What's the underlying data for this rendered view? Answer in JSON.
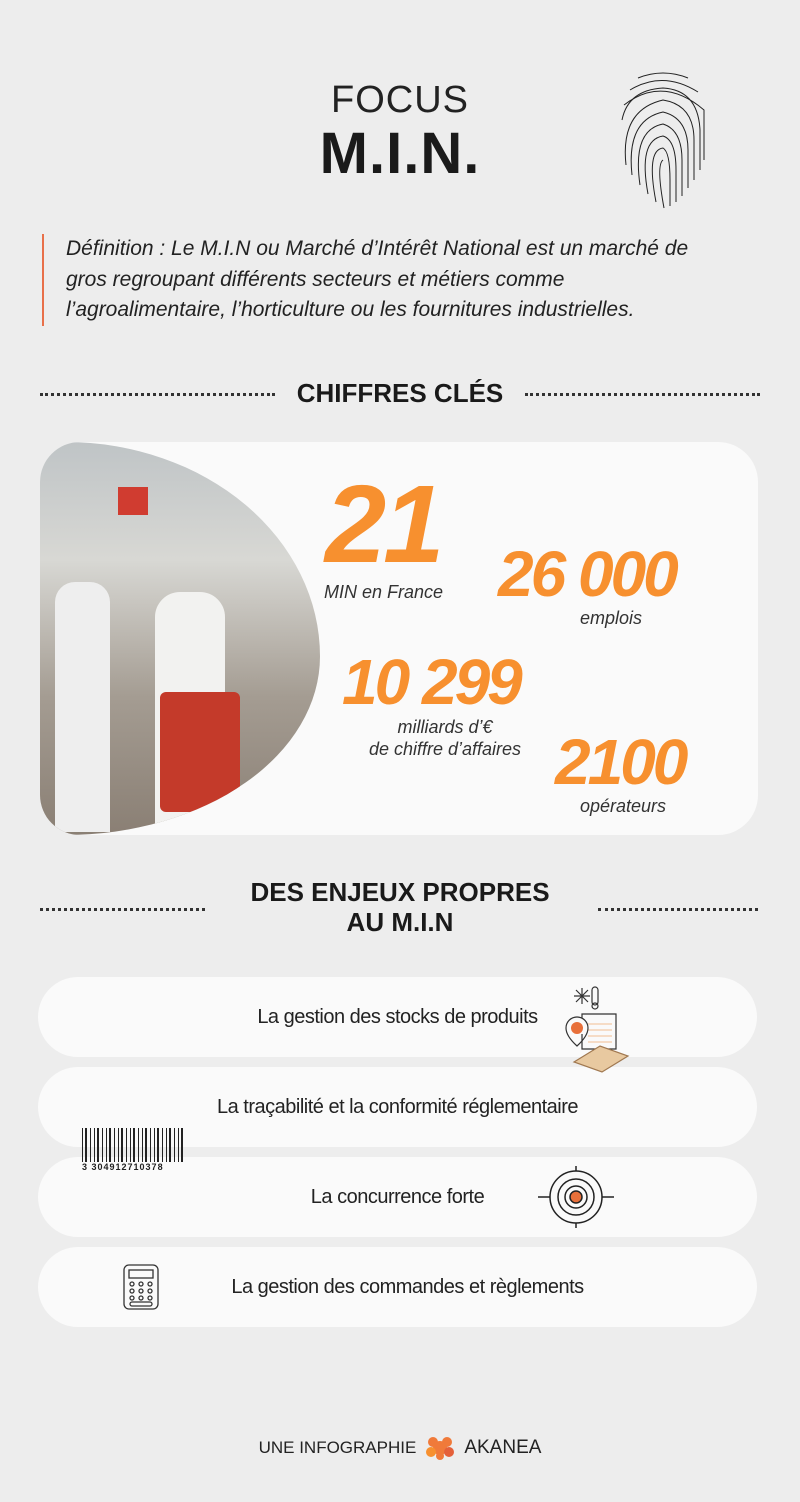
{
  "header": {
    "focus": "FOCUS",
    "title": "M.I.N."
  },
  "definition": "Définition : Le M.I.N ou Marché d’Intérêt National est un marché de gros regroupant différents secteurs et métiers comme l’agroalimentaire, l’horticulture ou les fournitures industrielles.",
  "key_figures": {
    "heading": "CHIFFRES CLÉS",
    "items": [
      {
        "value": "21",
        "label": "MIN en France"
      },
      {
        "value": "26 000",
        "label": "emplois"
      },
      {
        "value": "10 299",
        "label": "milliards d’€",
        "label2": "de chiffre d’affaires"
      },
      {
        "value": "2100",
        "label": "opérateurs"
      }
    ]
  },
  "issues": {
    "heading_line1": "DES ENJEUX PROPRES",
    "heading_line2": "AU M.I.N",
    "items": [
      {
        "label": "La gestion des stocks de produits",
        "icon": "pallet-cold-storage-icon"
      },
      {
        "label": "La traçabilité et la conformité réglementaire",
        "icon": "barcode-icon",
        "barcode": "3 304912710378"
      },
      {
        "label": "La concurrence forte",
        "icon": "target-icon"
      },
      {
        "label": "La gestion des commandes et règlements",
        "icon": "calculator-icon"
      }
    ]
  },
  "footer": {
    "prefix": "UNE INFOGRAPHIE",
    "brand": "AKANEA"
  },
  "colors": {
    "accent": "#f7902f",
    "background": "#ededed"
  }
}
